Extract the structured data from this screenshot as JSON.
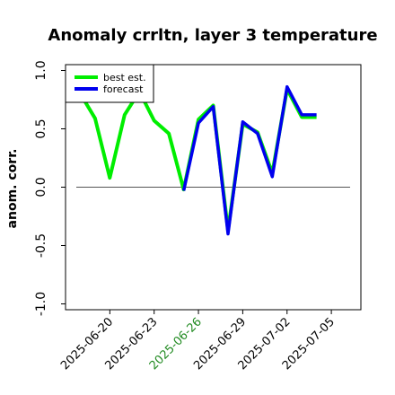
{
  "chart_data": {
    "type": "line",
    "title": "Anomaly crrltn, layer 3 temperature",
    "xlabel": "",
    "ylabel": "anom. corr.",
    "ylim": [
      -1.05,
      1.05
    ],
    "yticks": [
      -1.0,
      -0.5,
      0.0,
      0.5,
      1.0
    ],
    "ytick_labels": [
      "-1.0",
      "-0.5",
      "0.0",
      "0.5",
      "1.0"
    ],
    "xlim": [
      "2025-06-17",
      "2025-07-07"
    ],
    "xticks": [
      "2025-06-20",
      "2025-06-23",
      "2025-06-26",
      "2025-06-29",
      "2025-07-02",
      "2025-07-05"
    ],
    "xtick_colors": [
      "#000000",
      "#000000",
      "#228B22",
      "#000000",
      "#000000",
      "#000000"
    ],
    "baseline": 0.0,
    "grid": false,
    "legend_position": "top-left",
    "x": [
      "2025-06-18",
      "2025-06-19",
      "2025-06-20",
      "2025-06-21",
      "2025-06-22",
      "2025-06-23",
      "2025-06-24",
      "2025-06-25",
      "2025-06-26",
      "2025-06-27",
      "2025-06-28",
      "2025-06-29",
      "2025-06-30",
      "2025-07-01",
      "2025-07-02",
      "2025-07-03",
      "2025-07-04",
      "2025-07-05"
    ],
    "series": [
      {
        "name": "best est.",
        "color": "#00ee00",
        "values": [
          0.8,
          0.59,
          0.08,
          0.62,
          0.82,
          0.57,
          0.46,
          -0.02,
          0.58,
          0.7,
          -0.37,
          0.54,
          0.47,
          0.12,
          0.84,
          0.6,
          0.6,
          null
        ]
      },
      {
        "name": "forecast",
        "color": "#0000ee",
        "values": [
          null,
          null,
          null,
          null,
          null,
          null,
          null,
          -0.03,
          0.55,
          0.69,
          -0.4,
          0.56,
          0.46,
          0.09,
          0.86,
          0.62,
          0.62,
          null
        ]
      }
    ]
  }
}
